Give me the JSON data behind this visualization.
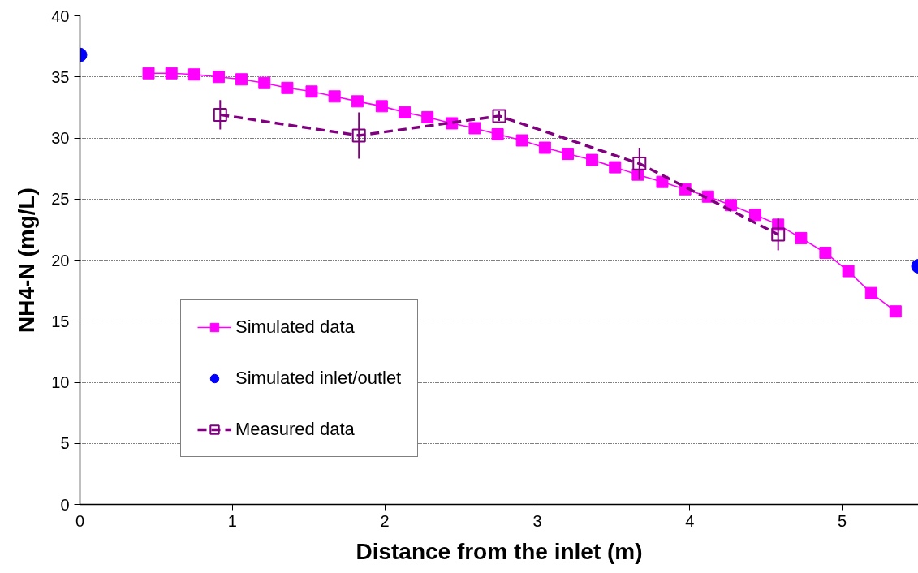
{
  "chart_data": {
    "type": "line",
    "xlabel": "Distance from the inlet (m)",
    "ylabel": "NH4-N (mg/L)",
    "xlim": [
      0,
      5.5
    ],
    "xticks": [
      0,
      1,
      2,
      3,
      4,
      5
    ],
    "ylim": [
      0,
      40
    ],
    "yticks": [
      0,
      5,
      10,
      15,
      20,
      25,
      30,
      35,
      40
    ],
    "grid": "y",
    "legend": "bottom left",
    "series": [
      {
        "name": "Simulated data",
        "color": "#ff00ff",
        "marker": "square",
        "line_style": "solid",
        "x": [
          0.45,
          0.6,
          0.75,
          0.91,
          1.06,
          1.21,
          1.36,
          1.52,
          1.67,
          1.82,
          1.98,
          2.13,
          2.28,
          2.44,
          2.59,
          2.74,
          2.9,
          3.05,
          3.2,
          3.36,
          3.51,
          3.66,
          3.82,
          3.97,
          4.12,
          4.27,
          4.43,
          4.58,
          4.73,
          4.89,
          5.04,
          5.19,
          5.35
        ],
        "values": [
          35.3,
          35.3,
          35.2,
          35.0,
          34.8,
          34.5,
          34.1,
          33.8,
          33.4,
          33.0,
          32.6,
          32.1,
          31.7,
          31.2,
          30.8,
          30.3,
          29.8,
          29.2,
          28.7,
          28.2,
          27.6,
          27.0,
          26.4,
          25.8,
          25.2,
          24.5,
          23.7,
          22.9,
          21.8,
          20.6,
          19.1,
          17.3,
          15.8
        ]
      },
      {
        "name": "Simulated inlet/outlet",
        "type": "scatter",
        "color": "#0000ff",
        "marker": "circle",
        "x": [
          0,
          5.5
        ],
        "values": [
          36.8,
          19.5
        ]
      },
      {
        "name": "Measured data",
        "color": "#800080",
        "marker": "square",
        "line_style": "dashed",
        "x": [
          0.92,
          1.83,
          2.75,
          3.67,
          4.58
        ],
        "values": [
          31.9,
          30.2,
          31.8,
          27.9,
          22.1
        ],
        "errors": [
          1.2,
          1.9,
          0.4,
          1.3,
          1.3
        ]
      }
    ]
  }
}
